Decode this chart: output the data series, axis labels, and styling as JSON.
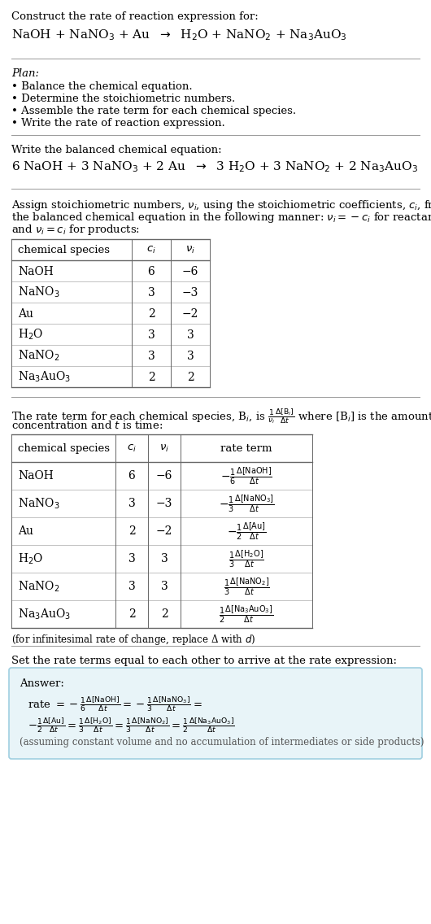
{
  "bg_color": "#ffffff",
  "title_line1": "Construct the rate of reaction expression for:",
  "plan_title": "Plan:",
  "plan_items": [
    "• Balance the chemical equation.",
    "• Determine the stoichiometric numbers.",
    "• Assemble the rate term for each chemical species.",
    "• Write the rate of reaction expression."
  ],
  "balanced_label": "Write the balanced chemical equation:",
  "stoich_para": [
    "Assign stoichiometric numbers, $\\nu_i$, using the stoichiometric coefficients, $c_i$, from",
    "the balanced chemical equation in the following manner: $\\nu_i = -c_i$ for reactants",
    "and $\\nu_i = c_i$ for products:"
  ],
  "table1_species": [
    "NaOH",
    "NaNO$_3$",
    "Au",
    "H$_2$O",
    "NaNO$_2$",
    "Na$_3$AuO$_3$"
  ],
  "table1_ci": [
    "6",
    "3",
    "2",
    "3",
    "3",
    "2"
  ],
  "table1_vi": [
    "−6",
    "−3",
    "−2",
    "3",
    "3",
    "2"
  ],
  "rate_para": [
    "The rate term for each chemical species, B$_i$, is $\\frac{1}{\\nu_i}\\frac{\\Delta[\\mathrm{B}_i]}{\\Delta t}$ where [B$_i$] is the amount",
    "concentration and $t$ is time:"
  ],
  "table2_species": [
    "NaOH",
    "NaNO$_3$",
    "Au",
    "H$_2$O",
    "NaNO$_2$",
    "Na$_3$AuO$_3$"
  ],
  "table2_ci": [
    "6",
    "3",
    "2",
    "3",
    "3",
    "2"
  ],
  "table2_vi": [
    "−6",
    "−3",
    "−2",
    "3",
    "3",
    "2"
  ],
  "table2_rate": [
    "$-\\frac{1}{6}\\frac{\\Delta[\\mathrm{NaOH}]}{\\Delta t}$",
    "$-\\frac{1}{3}\\frac{\\Delta[\\mathrm{NaNO_3}]}{\\Delta t}$",
    "$-\\frac{1}{2}\\frac{\\Delta[\\mathrm{Au}]}{\\Delta t}$",
    "$\\frac{1}{3}\\frac{\\Delta[\\mathrm{H_2O}]}{\\Delta t}$",
    "$\\frac{1}{3}\\frac{\\Delta[\\mathrm{NaNO_2}]}{\\Delta t}$",
    "$\\frac{1}{2}\\frac{\\Delta[\\mathrm{Na_3AuO_3}]}{\\Delta t}$"
  ],
  "infinitesimal_note": "(for infinitesimal rate of change, replace Δ with $d$)",
  "set_rate_text": "Set the rate terms equal to each other to arrive at the rate expression:",
  "answer_label": "Answer:",
  "answer_box_color": "#e8f4f8",
  "answer_box_border": "#a0cfe0",
  "ans_line1a": "rate $= -\\frac{1}{6}\\frac{\\Delta[\\mathrm{NaOH}]}{\\Delta t} = -\\frac{1}{3}\\frac{\\Delta[\\mathrm{NaNO_3}]}{\\Delta t} =$",
  "ans_line2": "$-\\frac{1}{2}\\frac{\\Delta[\\mathrm{Au}]}{\\Delta t} = \\frac{1}{3}\\frac{\\Delta[\\mathrm{H_2O}]}{\\Delta t} = \\frac{1}{3}\\frac{\\Delta[\\mathrm{NaNO_2}]}{\\Delta t} = \\frac{1}{2}\\frac{\\Delta[\\mathrm{Na_3AuO_3}]}{\\Delta t}$",
  "answer_note": "(assuming constant volume and no accumulation of intermediates or side products)"
}
